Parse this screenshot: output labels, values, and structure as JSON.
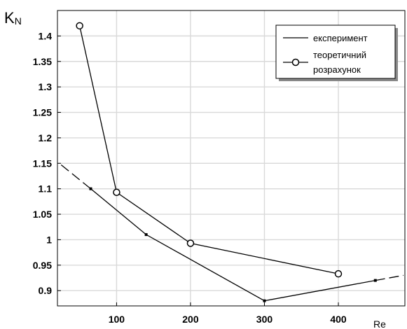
{
  "chart_data": {
    "type": "line",
    "title": "",
    "ylabel_main": "K",
    "ylabel_sub": "N",
    "xlabel": "Re",
    "xlim": [
      20,
      490
    ],
    "ylim": [
      0.87,
      1.45
    ],
    "grid": true,
    "legend_position": "top-right",
    "x_ticks": [
      100,
      200,
      300,
      400
    ],
    "x_tick_labels": [
      "100",
      "200",
      "300",
      "400"
    ],
    "y_ticks": [
      0.9,
      0.95,
      1.0,
      1.05,
      1.1,
      1.15,
      1.2,
      1.25,
      1.3,
      1.35,
      1.4
    ],
    "y_tick_labels": [
      "0.9",
      "0.95",
      "1",
      "1.05",
      "1.1",
      "1.15",
      "1.2",
      "1.25",
      "1.3",
      "1.35",
      "1.4"
    ],
    "series": [
      {
        "name": "експеримент",
        "style": "line",
        "color": "#000000",
        "x": [
          65,
          140,
          300,
          450
        ],
        "y": [
          1.1,
          1.01,
          0.88,
          0.92
        ],
        "extrapolation_start": {
          "x": 25,
          "y": 1.147
        },
        "extrapolation_end": {
          "x": 488,
          "y": 0.93
        }
      },
      {
        "name": "теоретичний розрахунок",
        "legend_lines": [
          "теоретичний",
          "розрахунок"
        ],
        "style": "line-circle",
        "color": "#000000",
        "x": [
          50,
          100,
          200,
          400
        ],
        "y": [
          1.42,
          1.093,
          0.993,
          0.933
        ]
      }
    ]
  }
}
